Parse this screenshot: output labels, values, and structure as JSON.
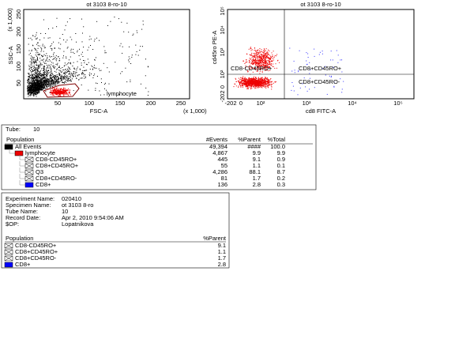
{
  "plots": [
    {
      "title": "ot 3103 8-ro-10",
      "x_label": "FSC-A",
      "y_label": "SSC-A",
      "x_unit": "(x 1,000)",
      "y_unit": "(x 1,000)",
      "x_ticks": [
        "50",
        "100",
        "150",
        "200",
        "250"
      ],
      "y_ticks": [
        "50",
        "100",
        "150",
        "200",
        "250"
      ],
      "gate_label": "lymphocyte"
    },
    {
      "title": "ot 3103 8-ro-10",
      "x_label": "cd8 FITC-A",
      "y_label": "cd45ro PE-A",
      "x_ticks": [
        "-202",
        "0",
        "10²",
        "10³",
        "10⁴",
        "10⁵"
      ],
      "y_ticks": [
        "-202",
        "0",
        "10²",
        "10³",
        "10⁴",
        "10⁵"
      ],
      "quadrants": [
        "CD8-CD45RO+",
        "CD8+CD45RO+",
        "CD8+CD45RO-"
      ]
    }
  ],
  "stats": {
    "tube_label": "Tube:",
    "tube": "10",
    "headers": [
      "Population",
      "#Events",
      "%Parent",
      "%Total"
    ],
    "rows": [
      [
        "All Events",
        "49,394",
        "####",
        "100.0"
      ],
      [
        "lymphocyte",
        "4,867",
        "9.9",
        "9.9"
      ],
      [
        "CD8-CD45RO+",
        "445",
        "9.1",
        "0.9"
      ],
      [
        "CD8+CD45RO+",
        "55",
        "1.1",
        "0.1"
      ],
      [
        "Q3",
        "4,286",
        "88.1",
        "8.7"
      ],
      [
        "CD8+CD45RO-",
        "81",
        "1.7",
        "0.2"
      ],
      [
        "CD8+",
        "136",
        "2.8",
        "0.3"
      ]
    ]
  },
  "info": {
    "fields": [
      [
        "Experiment Name:",
        "020410"
      ],
      [
        "Specimen Name:",
        "ot 3103 8-ro"
      ],
      [
        "Tube Name:",
        "10"
      ],
      [
        "Record Date:",
        "Apr 2, 2010 9:54:06 AM"
      ],
      [
        "$OP:",
        "Lopatnikova"
      ]
    ],
    "headers": [
      "Population",
      "%Parent"
    ],
    "rows": [
      [
        "CD8-CD45RO+",
        "9.1"
      ],
      [
        "CD8+CD45RO+",
        "1.1"
      ],
      [
        "CD8+CD45RO-",
        "1.7"
      ],
      [
        "CD8+",
        "2.8"
      ]
    ]
  }
}
